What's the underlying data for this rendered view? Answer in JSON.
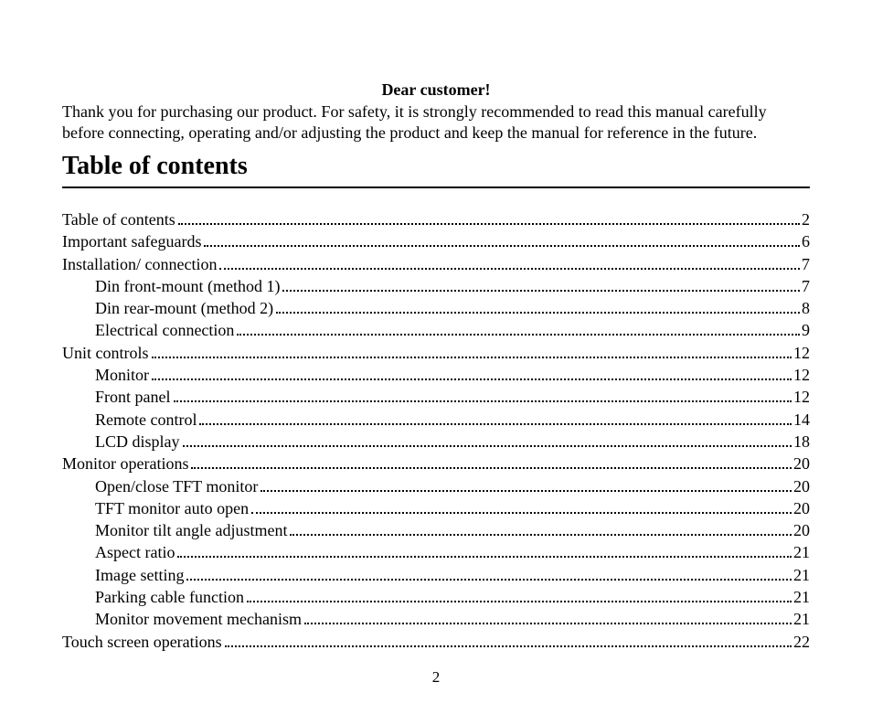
{
  "greeting": "Dear customer!",
  "intro": "Thank you for purchasing our product. For safety, it is strongly recommended to read this manual carefully before connecting, operating and/or adjusting the product and keep the manual for reference in the future.",
  "section_title": "Table of contents",
  "page_number": "2",
  "toc": [
    {
      "label": "Table of contents",
      "page": "2",
      "indent": 0
    },
    {
      "label": "Important safeguards",
      "page": "6",
      "indent": 0
    },
    {
      "label": "Installation/ connection",
      "page": "7",
      "indent": 0
    },
    {
      "label": "Din front-mount (method 1)",
      "page": "7",
      "indent": 1
    },
    {
      "label": "Din rear-mount (method 2)",
      "page": "8",
      "indent": 1
    },
    {
      "label": "Electrical connection",
      "page": "9",
      "indent": 1
    },
    {
      "label": "Unit controls",
      "page": "12",
      "indent": 0
    },
    {
      "label": "Monitor",
      "page": "12",
      "indent": 1
    },
    {
      "label": "Front panel",
      "page": "12",
      "indent": 1
    },
    {
      "label": "Remote control",
      "page": "14",
      "indent": 1
    },
    {
      "label": "LCD display",
      "page": "18",
      "indent": 1
    },
    {
      "label": "Monitor operations",
      "page": "20",
      "indent": 0
    },
    {
      "label": "Open/close TFT monitor",
      "page": "20",
      "indent": 1
    },
    {
      "label": "TFT monitor auto open",
      "page": "20",
      "indent": 1
    },
    {
      "label": "Monitor tilt angle adjustment",
      "page": "20",
      "indent": 1
    },
    {
      "label": "Aspect ratio",
      "page": "21",
      "indent": 1
    },
    {
      "label": "Image setting",
      "page": "21",
      "indent": 1
    },
    {
      "label": "Parking cable function",
      "page": "21",
      "indent": 1
    },
    {
      "label": "Monitor movement mechanism",
      "page": "21",
      "indent": 1
    },
    {
      "label": "Touch screen operations",
      "page": "22",
      "indent": 0
    }
  ]
}
